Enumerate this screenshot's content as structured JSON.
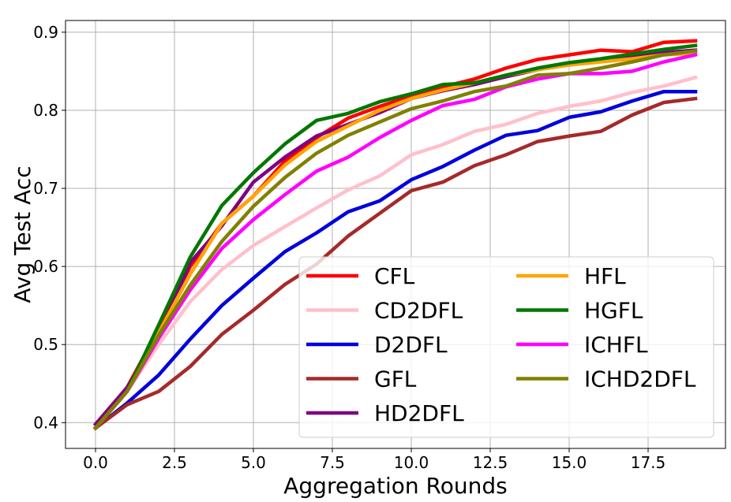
{
  "chart_data": {
    "type": "line",
    "title": "",
    "xlabel": "Aggregation Rounds",
    "ylabel": "Avg Test Acc",
    "xlim": [
      -0.95,
      19.95
    ],
    "ylim": [
      0.367,
      0.915
    ],
    "xticks": [
      0.0,
      2.5,
      5.0,
      7.5,
      10.0,
      12.5,
      15.0,
      17.5
    ],
    "xtick_labels": [
      "0.0",
      "2.5",
      "5.0",
      "7.5",
      "10.0",
      "12.5",
      "15.0",
      "17.5"
    ],
    "yticks": [
      0.4,
      0.5,
      0.6,
      0.7,
      0.8,
      0.9
    ],
    "ytick_labels": [
      "0.4",
      "0.5",
      "0.6",
      "0.7",
      "0.8",
      "0.9"
    ],
    "grid": true,
    "legend_position": "lower-right",
    "legend_columns": 2,
    "x": [
      0,
      1,
      2,
      3,
      4,
      5,
      6,
      7,
      8,
      9,
      10,
      11,
      12,
      13,
      14,
      15,
      16,
      17,
      18,
      19
    ],
    "series": [
      {
        "name": "CFL",
        "color": "#ff0000",
        "values": [
          0.393,
          0.445,
          0.52,
          0.6,
          0.655,
          0.69,
          0.735,
          0.765,
          0.79,
          0.805,
          0.818,
          0.83,
          0.84,
          0.854,
          0.865,
          0.871,
          0.877,
          0.875,
          0.887,
          0.889
        ]
      },
      {
        "name": "CD2DFL",
        "color": "#ffc0cb",
        "values": [
          0.395,
          0.44,
          0.5,
          0.555,
          0.596,
          0.627,
          0.651,
          0.675,
          0.698,
          0.716,
          0.743,
          0.756,
          0.773,
          0.782,
          0.796,
          0.805,
          0.812,
          0.823,
          0.831,
          0.842
        ]
      },
      {
        "name": "D2DFL",
        "color": "#0000dd",
        "values": [
          0.393,
          0.425,
          0.461,
          0.507,
          0.55,
          0.585,
          0.619,
          0.643,
          0.67,
          0.684,
          0.711,
          0.728,
          0.749,
          0.768,
          0.774,
          0.791,
          0.798,
          0.812,
          0.824,
          0.824
        ]
      },
      {
        "name": "GFL",
        "color": "#a52a2a",
        "values": [
          0.393,
          0.423,
          0.44,
          0.472,
          0.513,
          0.544,
          0.577,
          0.603,
          0.639,
          0.668,
          0.697,
          0.708,
          0.729,
          0.743,
          0.76,
          0.767,
          0.773,
          0.794,
          0.81,
          0.815
        ]
      },
      {
        "name": "HD2DFL",
        "color": "#800080",
        "values": [
          0.398,
          0.445,
          0.51,
          0.605,
          0.652,
          0.708,
          0.74,
          0.767,
          0.782,
          0.797,
          0.815,
          0.825,
          0.833,
          0.843,
          0.852,
          0.86,
          0.865,
          0.868,
          0.874,
          0.877
        ]
      },
      {
        "name": "HFL",
        "color": "#ffa500",
        "values": [
          0.393,
          0.44,
          0.515,
          0.59,
          0.655,
          0.69,
          0.73,
          0.76,
          0.78,
          0.8,
          0.815,
          0.826,
          0.835,
          0.845,
          0.852,
          0.858,
          0.862,
          0.866,
          0.871,
          0.873
        ]
      },
      {
        "name": "HGFL",
        "color": "#007700",
        "values": [
          0.393,
          0.44,
          0.525,
          0.612,
          0.678,
          0.72,
          0.757,
          0.787,
          0.796,
          0.811,
          0.821,
          0.833,
          0.835,
          0.845,
          0.854,
          0.861,
          0.866,
          0.872,
          0.878,
          0.883
        ]
      },
      {
        "name": "ICHFL",
        "color": "#ff00ff",
        "values": [
          0.393,
          0.44,
          0.508,
          0.57,
          0.623,
          0.66,
          0.692,
          0.722,
          0.74,
          0.765,
          0.787,
          0.806,
          0.814,
          0.83,
          0.84,
          0.847,
          0.847,
          0.85,
          0.862,
          0.871
        ]
      },
      {
        "name": "ICHD2DFL",
        "color": "#808000",
        "values": [
          0.393,
          0.44,
          0.512,
          0.576,
          0.632,
          0.677,
          0.714,
          0.745,
          0.768,
          0.785,
          0.802,
          0.812,
          0.824,
          0.831,
          0.845,
          0.847,
          0.854,
          0.862,
          0.871,
          0.876
        ]
      }
    ]
  }
}
